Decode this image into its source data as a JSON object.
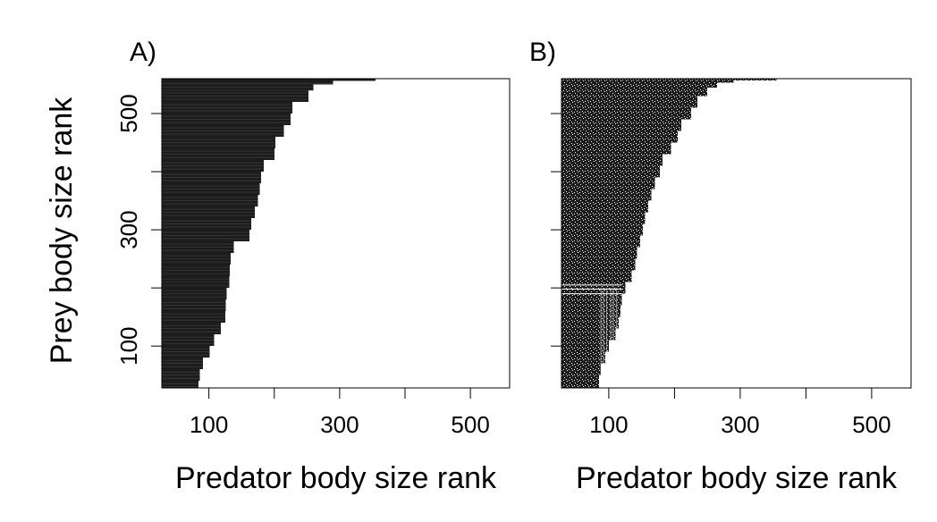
{
  "figure": {
    "ylabel": "Prey body size rank"
  },
  "chart_data": [
    {
      "type": "heatmap",
      "panel_label": "A)",
      "xlabel": "Predator body size rank",
      "ylabel": "Prey body size rank",
      "x_ticks": [
        100,
        200,
        300,
        400,
        500
      ],
      "x_tick_labels": [
        "100",
        "300",
        "500"
      ],
      "y_ticks": [
        100,
        200,
        300,
        400,
        500
      ],
      "y_tick_labels": [
        "100",
        "300",
        "500"
      ],
      "xlim": [
        28,
        560
      ],
      "ylim": [
        28,
        560
      ],
      "fill": "#1c1c1c",
      "pattern": "solid",
      "boundary": [
        {
          "prey": 28,
          "max_predator": 84
        },
        {
          "prey": 40,
          "max_predator": 86
        },
        {
          "prey": 60,
          "max_predator": 91
        },
        {
          "prey": 80,
          "max_predator": 101
        },
        {
          "prey": 100,
          "max_predator": 108
        },
        {
          "prey": 120,
          "max_predator": 118
        },
        {
          "prey": 140,
          "max_predator": 125
        },
        {
          "prey": 160,
          "max_predator": 126
        },
        {
          "prey": 180,
          "max_predator": 127
        },
        {
          "prey": 200,
          "max_predator": 131
        },
        {
          "prey": 220,
          "max_predator": 132
        },
        {
          "prey": 240,
          "max_predator": 133
        },
        {
          "prey": 260,
          "max_predator": 138
        },
        {
          "prey": 280,
          "max_predator": 162
        },
        {
          "prey": 300,
          "max_predator": 165
        },
        {
          "prey": 320,
          "max_predator": 170
        },
        {
          "prey": 340,
          "max_predator": 175
        },
        {
          "prey": 360,
          "max_predator": 178
        },
        {
          "prey": 380,
          "max_predator": 180
        },
        {
          "prey": 400,
          "max_predator": 184
        },
        {
          "prey": 420,
          "max_predator": 200
        },
        {
          "prey": 440,
          "max_predator": 202
        },
        {
          "prey": 460,
          "max_predator": 215
        },
        {
          "prey": 480,
          "max_predator": 225
        },
        {
          "prey": 500,
          "max_predator": 228
        },
        {
          "prey": 520,
          "max_predator": 252
        },
        {
          "prey": 540,
          "max_predator": 260
        },
        {
          "prey": 550,
          "max_predator": 290
        },
        {
          "prey": 556,
          "max_predator": 355
        },
        {
          "prey": 560,
          "max_predator": 355
        }
      ]
    },
    {
      "type": "heatmap",
      "panel_label": "B)",
      "xlabel": "Predator body size rank",
      "ylabel": "",
      "x_ticks": [
        100,
        200,
        300,
        400,
        500
      ],
      "x_tick_labels": [
        "100",
        "300",
        "500"
      ],
      "y_ticks": [
        100,
        200,
        300,
        400,
        500
      ],
      "y_tick_labels": [],
      "xlim": [
        28,
        560
      ],
      "ylim": [
        28,
        560
      ],
      "fill": "#1c1c1c",
      "pattern": "speckled",
      "boundary": [
        {
          "prey": 28,
          "max_predator": 85
        },
        {
          "prey": 50,
          "max_predator": 88
        },
        {
          "prey": 70,
          "max_predator": 95
        },
        {
          "prey": 90,
          "max_predator": 100
        },
        {
          "prey": 110,
          "max_predator": 110
        },
        {
          "prey": 130,
          "max_predator": 115
        },
        {
          "prey": 150,
          "max_predator": 118
        },
        {
          "prey": 170,
          "max_predator": 120
        },
        {
          "prey": 190,
          "max_predator": 125
        },
        {
          "prey": 210,
          "max_predator": 135
        },
        {
          "prey": 230,
          "max_predator": 140
        },
        {
          "prey": 250,
          "max_predator": 143
        },
        {
          "prey": 270,
          "max_predator": 148
        },
        {
          "prey": 290,
          "max_predator": 152
        },
        {
          "prey": 310,
          "max_predator": 155
        },
        {
          "prey": 330,
          "max_predator": 160
        },
        {
          "prey": 350,
          "max_predator": 165
        },
        {
          "prey": 370,
          "max_predator": 170
        },
        {
          "prey": 390,
          "max_predator": 178
        },
        {
          "prey": 410,
          "max_predator": 182
        },
        {
          "prey": 430,
          "max_predator": 195
        },
        {
          "prey": 450,
          "max_predator": 205
        },
        {
          "prey": 470,
          "max_predator": 210
        },
        {
          "prey": 490,
          "max_predator": 225
        },
        {
          "prey": 510,
          "max_predator": 235
        },
        {
          "prey": 530,
          "max_predator": 250
        },
        {
          "prey": 545,
          "max_predator": 265
        },
        {
          "prey": 553,
          "max_predator": 290
        },
        {
          "prey": 557,
          "max_predator": 355
        },
        {
          "prey": 560,
          "max_predator": 355
        }
      ]
    }
  ]
}
